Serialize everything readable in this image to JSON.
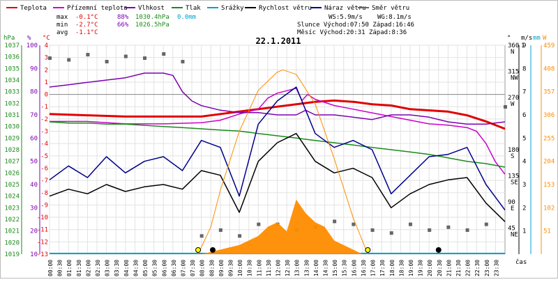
{
  "legend": [
    {
      "label": "Teplota",
      "color": "#e00000"
    },
    {
      "label": "Přízemní teplota",
      "color": "#cc00cc"
    },
    {
      "label": "Vlhkost",
      "color": "#7b00b0"
    },
    {
      "label": "Tlak",
      "color": "#1b8a1b"
    },
    {
      "label": "Srážky",
      "color": "#00a0d0"
    },
    {
      "label": "Rychlost větru",
      "color": "#000000"
    },
    {
      "label": "Náraz větru",
      "color": "#00008b"
    },
    {
      "label": "Směr větru",
      "color": "#666666"
    }
  ],
  "stats": {
    "max_label": "max",
    "min_label": "min",
    "avg_label": "avg",
    "max_temp": "-0.1°C",
    "max_hum": "88%",
    "max_press": "1030.4hPa",
    "max_rain": "0.0mm",
    "min_temp": "-2.7°C",
    "min_hum": "66%",
    "min_press": "1026.5hPa",
    "avg_temp": "-1.1°C"
  },
  "wind": {
    "ws": "WS:5.9m/s",
    "wg": "WG:8.1m/s",
    "sun": "Slunce Východ:07:50  Západ:16:46",
    "moon": "Měsíc  Východ:20:31  Západ:8:36"
  },
  "chart_data": {
    "type": "line",
    "title": "22.1.2011",
    "xlabel": "čas",
    "x_ticks": [
      "00:00",
      "00:30",
      "01:00",
      "01:30",
      "02:00",
      "02:30",
      "03:00",
      "03:30",
      "04:00",
      "04:30",
      "05:00",
      "05:30",
      "06:00",
      "06:30",
      "07:00",
      "07:30",
      "08:00",
      "08:30",
      "09:00",
      "09:30",
      "10:00",
      "10:30",
      "11:00",
      "11:30",
      "12:00",
      "12:30",
      "13:00",
      "13:30",
      "14:00",
      "14:30",
      "15:00",
      "15:30",
      "16:00",
      "16:30",
      "17:00",
      "17:30",
      "18:00",
      "18:30",
      "19:00",
      "19:30",
      "20:00",
      "20:30",
      "21:00",
      "21:30",
      "22:00",
      "22:30",
      "23:00",
      "23:30"
    ],
    "axes": {
      "temp": {
        "label": "°C",
        "ylim": [
          -13,
          4
        ],
        "ticks": [
          "4",
          "3",
          "2",
          "1",
          "0",
          "-1",
          "-2",
          "-3",
          "-4",
          "-5",
          "-6",
          "-7",
          "-8",
          "-9",
          "-10",
          "-11",
          "-12",
          "-13"
        ]
      },
      "humidity": {
        "label": "%",
        "ylim": [
          10,
          100
        ],
        "ticks": [
          "100",
          "90",
          "80",
          "70",
          "60",
          "50",
          "40",
          "30",
          "20",
          "10"
        ]
      },
      "pressure": {
        "label": "hPa",
        "ylim": [
          1019,
          1037
        ],
        "ticks": [
          "1037",
          "1036",
          "1035",
          "1034",
          "1033",
          "1032",
          "1031",
          "1030",
          "1029",
          "1028",
          "1027",
          "1026",
          "1025",
          "1024",
          "1023",
          "1022",
          "1021",
          "1020",
          "1019"
        ]
      },
      "direction": {
        "label": "°",
        "ticks": [
          "360",
          "315",
          "270",
          "180",
          "135",
          "90",
          "45"
        ],
        "compass": [
          "N",
          "NW",
          "W",
          "S",
          "SE",
          "E",
          "NE"
        ]
      },
      "wind_speed": {
        "label": "m/s",
        "ylim": [
          0,
          9
        ],
        "ticks": [
          "9",
          "8",
          "7",
          "6",
          "5",
          "4",
          "3",
          "2",
          "1"
        ]
      },
      "rain": {
        "label": "mm",
        "ticks": [
          "1"
        ]
      },
      "radiation": {
        "label": "W",
        "ylim": [
          0,
          459
        ],
        "ticks": [
          "459",
          "408",
          "357",
          "306",
          "255",
          "204",
          "153",
          "102",
          "51"
        ]
      }
    },
    "series": [
      {
        "name": "Teplota",
        "axis": "temp",
        "color": "#e00000",
        "x": [
          0,
          2,
          4,
          6,
          8,
          9,
          10,
          11,
          12,
          13,
          14,
          15,
          16,
          17,
          18,
          19,
          20,
          21,
          22,
          23,
          24
        ],
        "values": [
          -1.6,
          -1.7,
          -1.8,
          -1.8,
          -1.8,
          -1.6,
          -1.4,
          -1.2,
          -1.0,
          -0.8,
          -0.6,
          -0.5,
          -0.6,
          -0.8,
          -0.9,
          -1.2,
          -1.3,
          -1.4,
          -1.7,
          -2.2,
          -2.8
        ]
      },
      {
        "name": "Přízemní teplota",
        "axis": "temp",
        "color": "#cc00cc",
        "x": [
          0,
          2,
          4,
          6,
          8,
          9,
          10,
          11,
          11.5,
          12,
          12.5,
          13,
          13.3,
          13.6,
          14,
          15,
          16,
          17,
          18,
          19,
          20,
          21,
          22,
          22.5,
          23,
          23.5,
          24
        ],
        "values": [
          -2.2,
          -2.2,
          -2.4,
          -2.4,
          -2.3,
          -2.1,
          -1.6,
          -1.2,
          -0.3,
          0.1,
          0.3,
          0.5,
          -0.5,
          0.0,
          -0.4,
          -0.9,
          -1.2,
          -1.5,
          -1.8,
          -2.1,
          -2.4,
          -2.5,
          -2.7,
          -3.0,
          -4.0,
          -5.5,
          -6.5
        ]
      },
      {
        "name": "Vlhkost",
        "axis": "humidity",
        "color": "#7b00b0",
        "x": [
          0,
          1,
          2,
          3,
          4,
          5,
          6,
          6.5,
          7,
          7.5,
          8,
          9,
          10,
          11,
          12,
          13,
          13.5,
          14,
          15,
          16,
          17,
          18,
          19,
          20,
          21,
          22,
          23,
          24
        ],
        "values": [
          82,
          83,
          84,
          85,
          86,
          88,
          88,
          87,
          80,
          76,
          74,
          72,
          71,
          71,
          70,
          70,
          72,
          70,
          70,
          69,
          68,
          70,
          70,
          69,
          67,
          66,
          66,
          67
        ]
      },
      {
        "name": "Tlak",
        "axis": "pressure",
        "color": "#1b8a1b",
        "x": [
          0,
          1,
          2,
          3,
          4,
          5,
          6,
          7,
          8,
          9,
          10,
          11,
          12,
          13,
          14,
          15,
          16,
          17,
          18,
          19,
          20,
          21,
          22,
          23,
          24
        ],
        "values": [
          1030.4,
          1030.3,
          1030.3,
          1030.2,
          1030.2,
          1030.1,
          1030.0,
          1029.9,
          1029.8,
          1029.7,
          1029.6,
          1029.4,
          1029.2,
          1029.0,
          1028.8,
          1028.6,
          1028.4,
          1028.2,
          1028.0,
          1027.8,
          1027.6,
          1027.3,
          1027.0,
          1026.8,
          1026.5
        ]
      },
      {
        "name": "Rychlost větru",
        "axis": "wind_speed",
        "color": "#000000",
        "x": [
          0,
          1,
          2,
          3,
          4,
          5,
          6,
          7,
          8,
          9,
          10,
          11,
          12,
          13,
          14,
          15,
          16,
          17,
          18,
          19,
          20,
          21,
          22,
          23,
          24
        ],
        "values": [
          2.5,
          2.8,
          2.6,
          3.0,
          2.7,
          2.9,
          3.0,
          2.8,
          3.6,
          3.4,
          1.8,
          4.0,
          4.8,
          5.2,
          4.0,
          3.5,
          3.7,
          3.3,
          2.0,
          2.6,
          3.0,
          3.2,
          3.3,
          2.2,
          1.4
        ]
      },
      {
        "name": "Náraz větru",
        "axis": "wind_speed",
        "color": "#00008b",
        "x": [
          0,
          1,
          2,
          3,
          4,
          5,
          6,
          7,
          8,
          9,
          10,
          11,
          12,
          13,
          14,
          15,
          16,
          17,
          18,
          19,
          20,
          21,
          22,
          23,
          24
        ],
        "values": [
          3.2,
          3.8,
          3.3,
          4.2,
          3.5,
          4.0,
          4.2,
          3.6,
          4.9,
          4.6,
          2.5,
          5.6,
          6.6,
          7.2,
          5.2,
          4.6,
          4.9,
          4.5,
          2.6,
          3.4,
          4.2,
          4.3,
          4.6,
          3.0,
          1.9
        ]
      },
      {
        "name": "Srážky",
        "axis": "rain",
        "color": "#00a0d0",
        "x": [
          0,
          24
        ],
        "values": [
          0,
          0
        ]
      },
      {
        "name": "Směr větru",
        "axis": "direction",
        "color": "#666666",
        "x": [
          0,
          1,
          2,
          3,
          4,
          5,
          6,
          7,
          8,
          9,
          10,
          11,
          12,
          13,
          14,
          15,
          16,
          17,
          18,
          19,
          20,
          21,
          22,
          23,
          24
        ],
        "values": [
          340,
          335,
          350,
          330,
          345,
          340,
          352,
          330,
          20,
          30,
          20,
          40,
          40,
          30,
          35,
          45,
          40,
          30,
          25,
          40,
          30,
          35,
          30,
          40,
          200
        ]
      },
      {
        "name": "Solar radiation",
        "axis": "radiation",
        "color": "#ff8c00",
        "x": [
          8,
          9,
          10,
          11,
          11.5,
          12,
          12.5,
          13,
          13.5,
          14,
          14.5,
          15,
          16,
          16.5
        ],
        "values": [
          0,
          10,
          20,
          40,
          60,
          70,
          50,
          120,
          90,
          70,
          60,
          30,
          10,
          0
        ]
      },
      {
        "name": "Theoretical radiation",
        "axis": "radiation",
        "color": "#ff8c00",
        "x": [
          7.83,
          8.5,
          9,
          10,
          11,
          12,
          12.3,
          13,
          14,
          15,
          16,
          16.77
        ],
        "values": [
          0,
          60,
          140,
          270,
          360,
          400,
          405,
          395,
          330,
          210,
          80,
          0
        ]
      }
    ],
    "markers": [
      {
        "x": 7.83,
        "fill": "#ffff00"
      },
      {
        "x": 8.6,
        "fill": "#000000"
      },
      {
        "x": 16.77,
        "fill": "#ffff00"
      },
      {
        "x": 20.5,
        "fill": "#000000"
      }
    ],
    "grid": true
  }
}
